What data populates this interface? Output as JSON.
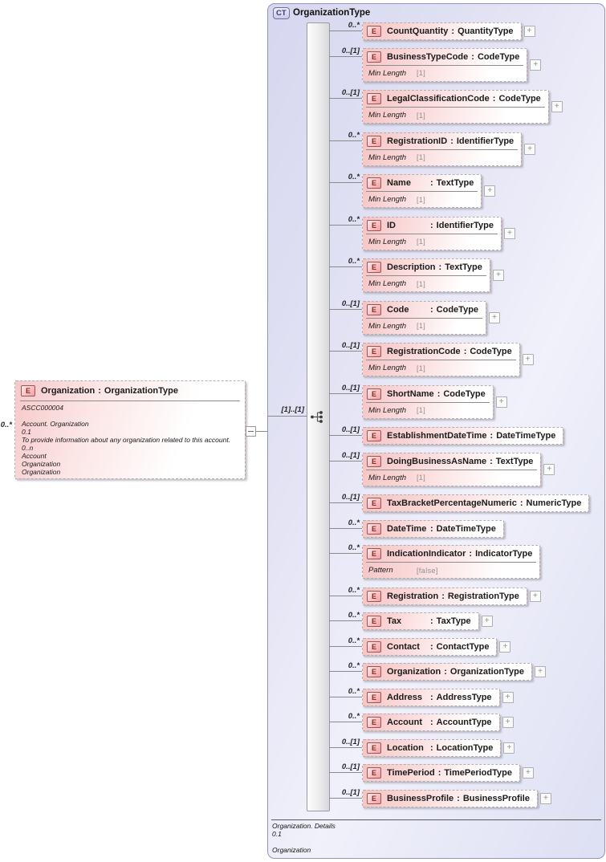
{
  "diagram": {
    "colon": ":",
    "element_badge": "E",
    "expand_glyph": "+",
    "root": {
      "badge": "CT",
      "title": "OrganizationType",
      "sequence_cardinality": "[1]..[1]",
      "footer_lines": [
        "Organization. Details",
        "0.1",
        "",
        "Organization"
      ]
    },
    "left_element": {
      "badge": "E",
      "cardinality": "0..*",
      "name": "Organization",
      "type": "OrganizationType",
      "doc_lines": [
        "ASCC000004",
        "",
        "Account. Organization",
        "0.1",
        "To provide information about any organization related to this account.",
        "0..n",
        "Account",
        "Organization",
        "Organization"
      ]
    },
    "elements": [
      {
        "cardinality": "0..*",
        "name": "CountQuantity",
        "type": "QuantityType",
        "facet": null,
        "expand": true
      },
      {
        "cardinality": "0..[1]",
        "name": "BusinessTypeCode",
        "type": "CodeType",
        "facet": {
          "label": "Min Length",
          "value": "[1]"
        },
        "expand": true
      },
      {
        "cardinality": "0..[1]",
        "name": "LegalClassificationCode",
        "type": "CodeType",
        "facet": {
          "label": "Min Length",
          "value": "[1]"
        },
        "expand": true
      },
      {
        "cardinality": "0..*",
        "name": "RegistrationID",
        "type": "IdentifierType",
        "facet": {
          "label": "Min Length",
          "value": "[1]"
        },
        "expand": true
      },
      {
        "cardinality": "0..*",
        "name": "Name",
        "type": "TextType",
        "facet": {
          "label": "Min Length",
          "value": "[1]"
        },
        "expand": true
      },
      {
        "cardinality": "0..*",
        "name": "ID",
        "type": "IdentifierType",
        "facet": {
          "label": "Min Length",
          "value": "[1]"
        },
        "expand": true
      },
      {
        "cardinality": "0..*",
        "name": "Description",
        "type": "TextType",
        "facet": {
          "label": "Min Length",
          "value": "[1]"
        },
        "expand": true
      },
      {
        "cardinality": "0..[1]",
        "name": "Code",
        "type": "CodeType",
        "facet": {
          "label": "Min Length",
          "value": "[1]"
        },
        "expand": true
      },
      {
        "cardinality": "0..[1]",
        "name": "RegistrationCode",
        "type": "CodeType",
        "facet": {
          "label": "Min Length",
          "value": "[1]"
        },
        "expand": true
      },
      {
        "cardinality": "0..[1]",
        "name": "ShortName",
        "type": "CodeType",
        "facet": {
          "label": "Min Length",
          "value": "[1]"
        },
        "expand": true
      },
      {
        "cardinality": "0..[1]",
        "name": "EstablishmentDateTime",
        "type": "DateTimeType",
        "facet": null,
        "expand": false
      },
      {
        "cardinality": "0..[1]",
        "name": "DoingBusinessAsName",
        "type": "TextType",
        "facet": {
          "label": "Min Length",
          "value": "[1]"
        },
        "expand": true
      },
      {
        "cardinality": "0..[1]",
        "name": "TaxBracketPercentageNumeric",
        "type": "NumericType",
        "facet": null,
        "expand": false
      },
      {
        "cardinality": "0..*",
        "name": "DateTime",
        "type": "DateTimeType",
        "facet": null,
        "expand": false
      },
      {
        "cardinality": "0..*",
        "name": "IndicationIndicator",
        "type": "IndicatorType",
        "facet": {
          "label": "Pattern",
          "value": "[false]"
        },
        "expand": false
      },
      {
        "cardinality": "0..*",
        "name": "Registration",
        "type": "RegistrationType",
        "facet": null,
        "expand": true
      },
      {
        "cardinality": "0..*",
        "name": "Tax",
        "type": "TaxType",
        "facet": null,
        "expand": true
      },
      {
        "cardinality": "0..*",
        "name": "Contact",
        "type": "ContactType",
        "facet": null,
        "expand": true
      },
      {
        "cardinality": "0..*",
        "name": "Organization",
        "type": "OrganizationType",
        "facet": null,
        "expand": true
      },
      {
        "cardinality": "0..*",
        "name": "Address",
        "type": "AddressType",
        "facet": null,
        "expand": true
      },
      {
        "cardinality": "0..*",
        "name": "Account",
        "type": "AccountType",
        "facet": null,
        "expand": true
      },
      {
        "cardinality": "0..[1]",
        "name": "Location",
        "type": "LocationType",
        "facet": null,
        "expand": true
      },
      {
        "cardinality": "0..[1]",
        "name": "TimePeriod",
        "type": "TimePeriodType",
        "facet": null,
        "expand": true
      },
      {
        "cardinality": "0..[1]",
        "name": "BusinessProfile",
        "type": "BusinessProfile",
        "facet": null,
        "expand": true
      }
    ]
  }
}
